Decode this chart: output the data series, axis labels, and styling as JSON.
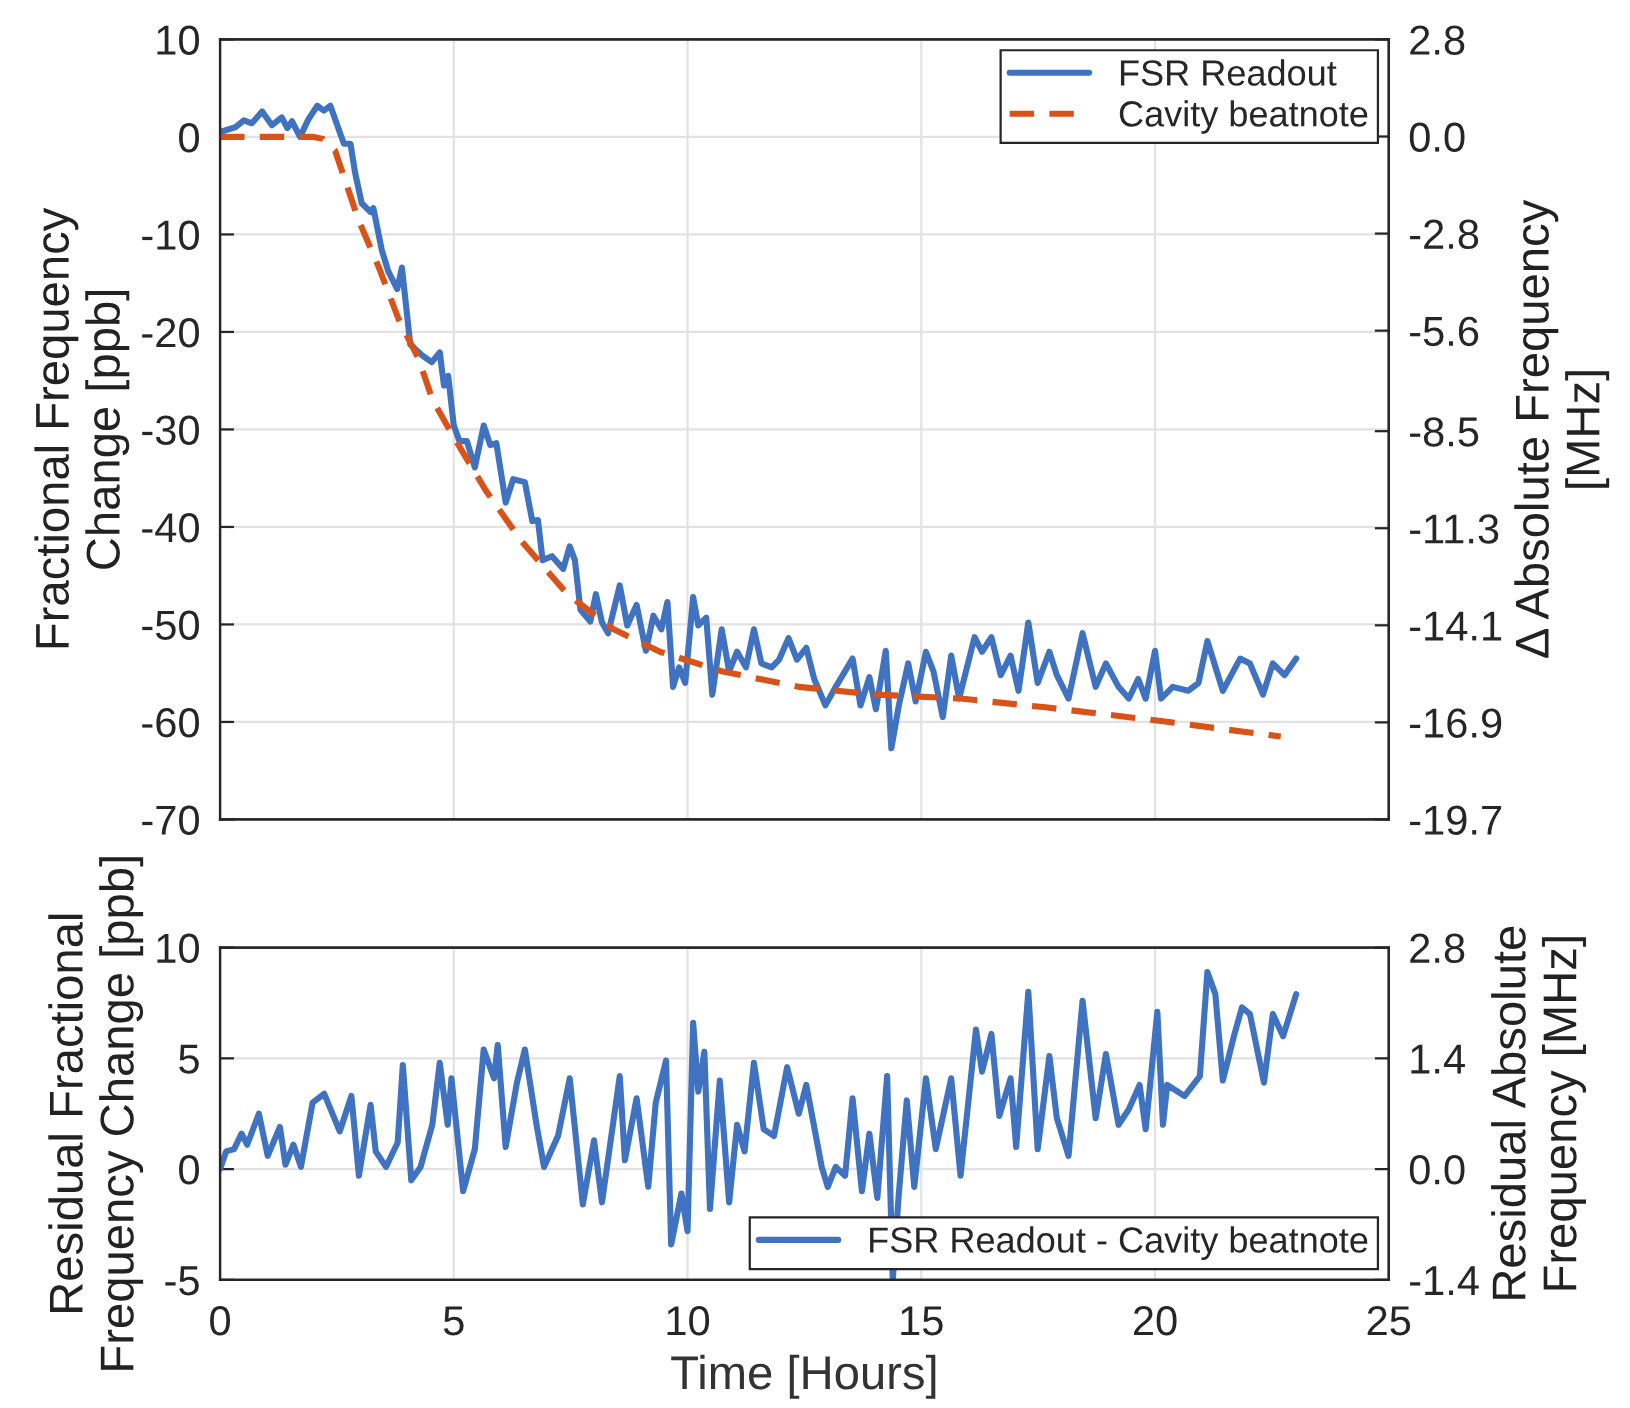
{
  "chart_data": [
    {
      "type": "line",
      "ylabel": "Fractional Frequency\nChange [ppb]",
      "y2label": "Δ Absolute Frequency\n[MHz]",
      "xlim": [
        0,
        25
      ],
      "xticks": [
        0,
        5,
        10,
        15,
        20,
        25
      ],
      "ylim": [
        -70,
        10
      ],
      "yticks": [
        -70,
        -60,
        -50,
        -40,
        -30,
        -20,
        -10,
        0,
        10
      ],
      "y2lim": [
        -19.7,
        2.8
      ],
      "y2ticks": [
        -19.7,
        -16.9,
        -14.1,
        -11.3,
        -8.5,
        -5.6,
        -2.8,
        {
          "value": 0,
          "label": "0.0"
        },
        2.8
      ],
      "tick_labels": "y",
      "grid": true,
      "legend": "top right",
      "series": [
        {
          "name": "FSR Readout",
          "color": "#3f72c0",
          "line_style": "solid",
          "x": [
            0,
            0.33,
            0.51,
            0.68,
            0.9,
            1.11,
            1.32,
            1.44,
            1.54,
            1.71,
            1.89,
            2.08,
            2.22,
            2.36,
            2.53,
            2.65,
            2.79,
            2.89,
            3.03,
            3.22,
            3.28,
            3.46,
            3.6,
            3.79,
            3.89,
            4.07,
            4.32,
            4.53,
            4.7,
            4.79,
            4.88,
            5.0,
            5.12,
            5.28,
            5.45,
            5.64,
            5.78,
            5.91,
            6.11,
            6.27,
            6.52,
            6.68,
            6.8,
            6.9,
            7.1,
            7.34,
            7.48,
            7.59,
            7.71,
            7.92,
            8.04,
            8.17,
            8.3,
            8.55,
            8.71,
            8.91,
            9.11,
            9.27,
            9.44,
            9.57,
            9.69,
            9.82,
            9.95,
            10.12,
            10.23,
            10.4,
            10.53,
            10.73,
            10.89,
            11.06,
            11.25,
            11.42,
            11.58,
            11.8,
            11.96,
            12.16,
            12.34,
            12.54,
            12.71,
            12.95,
            13.17,
            13.53,
            13.7,
            13.89,
            14.03,
            14.24,
            14.36,
            14.52,
            14.72,
            14.88,
            15.1,
            15.26,
            15.46,
            15.64,
            15.81,
            16.14,
            16.3,
            16.5,
            16.7,
            16.91,
            17.08,
            17.29,
            17.49,
            17.74,
            17.9,
            18.15,
            18.45,
            18.73,
            18.95,
            19.22,
            19.44,
            19.64,
            19.8,
            20.0,
            20.13,
            20.38,
            20.71,
            20.93,
            21.12,
            21.45,
            21.82,
            22.03,
            22.31,
            22.52,
            22.77,
            23.02
          ],
          "values": [
            0.5,
            1.0,
            1.7,
            1.4,
            2.6,
            1.2,
            2.0,
            0.9,
            1.6,
            0,
            1.8,
            3.2,
            2.7,
            3.2,
            0.9,
            -0.7,
            -0.7,
            -3.7,
            -6.8,
            -7.7,
            -7.3,
            -11.6,
            -13.8,
            -15.6,
            -13.4,
            -21.3,
            -22.4,
            -23.1,
            -22.1,
            -25.5,
            -24.5,
            -29.6,
            -31.2,
            -31.2,
            -33.9,
            -29.6,
            -31.6,
            -31.4,
            -37.5,
            -35.1,
            -35.4,
            -39.4,
            -39.3,
            -43.4,
            -43,
            -44.3,
            -42,
            -43.4,
            -48.5,
            -49.7,
            -46.9,
            -49.8,
            -50.9,
            -46,
            -50.1,
            -48,
            -52.7,
            -49.1,
            -50.5,
            -47.7,
            -56.4,
            -54.4,
            -56,
            -47.2,
            -50.1,
            -49.3,
            -57.2,
            -50.5,
            -54.8,
            -52.8,
            -54.4,
            -50.5,
            -54,
            -54.4,
            -53.6,
            -51.4,
            -53.6,
            -52.4,
            -55.6,
            -58.3,
            -56.4,
            -53.5,
            -58.3,
            -55.4,
            -58.7,
            -52.7,
            -62.7,
            -58.3,
            -54,
            -57.9,
            -52.8,
            -54.8,
            -59.5,
            -53.2,
            -57.6,
            -51.3,
            -52.8,
            -51.3,
            -55.2,
            -53.2,
            -56.8,
            -49.8,
            -56,
            -52.8,
            -55.2,
            -57.6,
            -50.9,
            -56.4,
            -54,
            -56.4,
            -57.6,
            -55.6,
            -57.6,
            -52.7,
            -57.6,
            -56.4,
            -56.8,
            -56,
            -51.7,
            -56.8,
            -53.5,
            -54,
            -57.2,
            -54,
            -55.2,
            -53.5
          ]
        },
        {
          "name": "Cavity beatnote",
          "color": "#d95319",
          "line_style": "dashed",
          "x": [
            0,
            1.0,
            2.0,
            2.2,
            2.46,
            2.96,
            3.39,
            3.82,
            4.25,
            4.54,
            4.95,
            5.69,
            6.44,
            7.43,
            8.42,
            9.41,
            10.73,
            12.38,
            14.03,
            15.84,
            17.66,
            20.13,
            22.69
          ],
          "values": [
            0,
            0,
            0,
            -0.2,
            -1.4,
            -8.5,
            -13.3,
            -18.7,
            -22.8,
            -26.9,
            -30.4,
            -36.3,
            -41.4,
            -46.9,
            -50.5,
            -52.8,
            -54.8,
            -56.4,
            -57.2,
            -57.6,
            -58.5,
            -59.9,
            -61.5
          ]
        }
      ]
    },
    {
      "type": "line",
      "xlabel": "Time [Hours]",
      "ylabel": "Residual Fractional\nFrequency Change [ppb]",
      "y2label": "Residual Absolute\nFrequency [MHz]",
      "xlim": [
        0,
        25
      ],
      "xticks": [
        0,
        5,
        10,
        15,
        20,
        25
      ],
      "ylim": [
        -5,
        10
      ],
      "yticks": [
        -5,
        0,
        5,
        10
      ],
      "y2lim": [
        -1.4,
        2.8
      ],
      "y2ticks": [
        -1.4,
        {
          "value": 0,
          "label": "0.0"
        },
        1.4,
        2.8
      ],
      "grid": true,
      "legend": "bottom right",
      "series": [
        {
          "name": "FSR Readout - Cavity beatnote",
          "color": "#3f72c0",
          "line_style": "solid",
          "x": [
            0,
            0.13,
            0.3,
            0.46,
            0.58,
            0.83,
            1.02,
            1.28,
            1.4,
            1.57,
            1.73,
            1.98,
            2.23,
            2.56,
            2.81,
            2.97,
            3.22,
            3.33,
            3.55,
            3.8,
            3.91,
            4.09,
            4.29,
            4.54,
            4.7,
            4.87,
            4.95,
            5.2,
            5.45,
            5.64,
            5.86,
            5.94,
            6.11,
            6.35,
            6.52,
            6.77,
            6.93,
            7.23,
            7.48,
            7.76,
            8.0,
            8.17,
            8.55,
            8.66,
            8.91,
            9.16,
            9.32,
            9.54,
            9.65,
            9.87,
            10.0,
            10.12,
            10.23,
            10.36,
            10.48,
            10.69,
            10.89,
            11.06,
            11.22,
            11.42,
            11.63,
            11.85,
            12.13,
            12.38,
            12.54,
            12.87,
            13.0,
            13.17,
            13.37,
            13.53,
            13.73,
            13.89,
            14.06,
            14.27,
            14.39,
            14.52,
            14.69,
            14.85,
            15.1,
            15.31,
            15.48,
            15.64,
            15.84,
            16.17,
            16.3,
            16.5,
            16.67,
            16.91,
            17.03,
            17.29,
            17.49,
            17.74,
            17.9,
            18.15,
            18.45,
            18.73,
            18.95,
            19.22,
            19.44,
            19.67,
            19.8,
            20.05,
            20.17,
            20.26,
            20.63,
            20.96,
            21.12,
            21.29,
            21.45,
            21.7,
            21.86,
            22.03,
            22.33,
            22.52,
            22.74,
            23.02
          ],
          "values": [
            0,
            0.8,
            0.9,
            1.6,
            1.1,
            2.5,
            0.6,
            1.9,
            0.2,
            1.1,
            0.1,
            3.0,
            3.4,
            1.7,
            3.3,
            -0.3,
            2.9,
            0.8,
            0.1,
            1.2,
            4.7,
            -0.5,
            0.1,
            2.0,
            4.8,
            2.0,
            4.1,
            -1.0,
            0.9,
            5.4,
            4.1,
            5.6,
            1.0,
            3.9,
            5.4,
            2.0,
            0.1,
            1.5,
            4.1,
            -1.6,
            1.3,
            -1.5,
            4.2,
            0.4,
            3.2,
            -0.8,
            3.0,
            4.9,
            -3.4,
            -1.1,
            -2.8,
            6.6,
            3.5,
            5.3,
            -1.8,
            4.0,
            -1.5,
            2.0,
            0.8,
            4.8,
            1.8,
            1.5,
            4.6,
            2.5,
            3.8,
            0.1,
            -0.8,
            0.1,
            -0.3,
            3.2,
            -1.0,
            1.6,
            -1.3,
            4.2,
            -5.0,
            -1.1,
            3.1,
            -0.8,
            4.1,
            0.9,
            null,
            4.1,
            -0.3,
            6.3,
            4.4,
            6.1,
            2.4,
            4.1,
            1.0,
            8.0,
            0.9,
            5.1,
            2.3,
            0.6,
            7.6,
            2.3,
            5.2,
            2.0,
            2.7,
            3.8,
            1.8,
            7.1,
            2.0,
            3.8,
            3.3,
            4.2,
            8.9,
            7.9,
            4.0,
            6.1,
            7.3,
            7.0,
            3.9,
            7.0,
            6.0,
            7.9
          ]
        }
      ]
    }
  ]
}
